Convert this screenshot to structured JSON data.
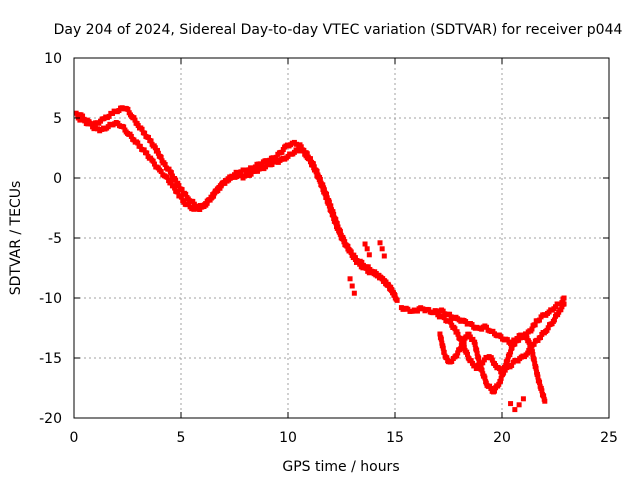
{
  "chart_data": {
    "type": "scatter",
    "title": "Day 204 of 2024, Sidereal Day-to-day VTEC variation (SDTVAR) for receiver p044",
    "xlabel": "GPS time / hours",
    "ylabel": "SDTVAR / TECUs",
    "xlim": [
      0,
      25
    ],
    "ylim": [
      -20,
      10
    ],
    "x_ticks": [
      0,
      5,
      10,
      15,
      20,
      25
    ],
    "y_ticks": [
      -20,
      -15,
      -10,
      -5,
      0,
      5,
      10
    ],
    "x_tick_labels": [
      "0",
      "5",
      "10",
      "15",
      "20",
      "25"
    ],
    "y_tick_labels": [
      "-20",
      "-15",
      "-10",
      "-5",
      "0",
      "5",
      "10"
    ],
    "grid": true,
    "color": "#ff0000",
    "series": [
      {
        "name": "trace-main",
        "x": [
          0.2,
          0.5,
          0.8,
          1.0,
          1.3,
          1.6,
          1.9,
          2.2,
          2.5,
          2.8,
          3.1,
          3.4,
          3.7,
          4.0,
          4.3,
          4.6,
          4.9,
          5.2,
          5.5,
          5.8,
          6.1,
          6.4,
          6.7,
          7.0,
          7.3,
          7.6,
          7.9,
          8.2,
          8.5,
          8.8,
          9.1,
          9.4,
          9.7,
          10.0,
          10.3,
          10.6,
          10.9,
          11.2,
          11.5,
          11.8,
          12.1,
          12.4,
          12.7,
          13.0,
          13.3,
          13.6,
          13.9,
          14.2,
          14.5,
          14.8,
          15.1
        ],
        "y": [
          5.0,
          4.7,
          4.4,
          4.1,
          4.0,
          4.3,
          4.6,
          4.4,
          3.8,
          3.2,
          2.6,
          2.0,
          1.3,
          0.6,
          0.1,
          -0.6,
          -1.4,
          -2.1,
          -2.5,
          -2.6,
          -2.3,
          -1.7,
          -1.0,
          -0.4,
          0.0,
          0.2,
          0.1,
          0.3,
          0.6,
          0.8,
          1.1,
          1.3,
          1.5,
          1.8,
          2.2,
          2.4,
          1.8,
          0.9,
          -0.3,
          -1.7,
          -3.2,
          -4.6,
          -5.6,
          -6.4,
          -6.9,
          -7.3,
          -7.7,
          -8.1,
          -8.6,
          -9.2,
          -10.2
        ]
      },
      {
        "name": "trace-upper",
        "x": [
          0.1,
          0.4,
          0.7,
          1.0,
          1.4,
          1.8,
          2.1,
          2.4,
          2.7,
          3.0,
          3.3,
          3.6,
          3.9,
          4.2,
          4.5,
          4.8,
          5.1,
          5.4,
          5.7,
          6.0,
          6.3,
          6.6,
          6.9,
          7.2,
          7.5,
          7.8,
          8.1,
          8.4,
          8.7,
          9.0,
          9.3,
          9.6,
          9.9,
          10.2,
          10.5,
          10.8,
          11.1,
          11.4,
          11.7,
          12.0,
          12.3,
          12.6,
          12.9,
          13.2,
          13.5,
          13.8,
          14.1,
          14.4,
          14.7,
          15.0
        ],
        "y": [
          5.4,
          5.1,
          4.6,
          4.5,
          4.9,
          5.4,
          5.7,
          5.9,
          5.2,
          4.4,
          3.7,
          3.0,
          2.2,
          1.2,
          0.5,
          -0.4,
          -1.2,
          -1.8,
          -2.3,
          -2.4,
          -1.9,
          -1.2,
          -0.6,
          -0.1,
          0.3,
          0.6,
          0.6,
          0.9,
          1.2,
          1.4,
          1.6,
          2.0,
          2.6,
          2.9,
          2.8,
          2.2,
          1.4,
          0.3,
          -1.0,
          -2.4,
          -3.9,
          -5.2,
          -6.1,
          -7.0,
          -7.4,
          -7.8,
          -8.0,
          -8.4,
          -9.0,
          -9.8
        ]
      },
      {
        "name": "trace-late",
        "x": [
          15.3,
          15.6,
          15.9,
          16.2,
          16.5,
          16.8,
          17.1,
          17.4,
          17.7,
          18.0,
          18.3,
          18.6,
          18.9,
          19.2,
          19.5,
          19.8,
          20.1,
          20.4,
          20.7,
          21.0,
          21.3,
          21.6,
          21.9,
          22.2,
          22.5,
          22.8,
          22.9
        ],
        "y": [
          -10.8,
          -11.0,
          -11.1,
          -10.9,
          -11.0,
          -11.2,
          -11.0,
          -11.3,
          -11.6,
          -11.8,
          -12.0,
          -12.3,
          -12.6,
          -12.4,
          -12.8,
          -13.1,
          -13.4,
          -13.7,
          -13.5,
          -13.3,
          -12.8,
          -12.0,
          -11.5,
          -11.2,
          -10.7,
          -10.3,
          -10.0
        ]
      },
      {
        "name": "trace-late-b",
        "x": [
          17.0,
          17.3,
          17.6,
          17.9,
          18.2,
          18.5,
          18.8,
          19.1,
          19.4,
          19.7,
          20.0,
          20.3,
          20.6,
          20.9,
          21.2,
          21.5,
          21.8,
          22.1,
          22.4,
          22.7,
          22.9
        ],
        "y": [
          -11.4,
          -11.7,
          -12.1,
          -12.9,
          -14.0,
          -15.2,
          -15.8,
          -15.3,
          -14.8,
          -15.6,
          -16.2,
          -15.8,
          -15.3,
          -15.0,
          -14.6,
          -13.8,
          -13.2,
          -12.6,
          -11.9,
          -11.0,
          -10.5
        ]
      },
      {
        "name": "trace-dip",
        "x": [
          17.1,
          17.3,
          17.5,
          17.8,
          18.1,
          18.4,
          18.7,
          19.0,
          19.3,
          19.6,
          19.9,
          20.2,
          20.5,
          20.8,
          21.1,
          21.4,
          21.7,
          22.0
        ],
        "y": [
          -13.0,
          -14.6,
          -15.4,
          -15.0,
          -14.0,
          -13.0,
          -13.6,
          -15.8,
          -17.2,
          -17.8,
          -17.0,
          -15.4,
          -14.0,
          -13.2,
          -13.0,
          -14.4,
          -16.8,
          -18.6
        ]
      },
      {
        "name": "trace-fragments",
        "x": [
          13.6,
          13.7,
          13.8,
          14.3,
          14.4,
          14.5,
          12.9,
          13.0,
          13.1,
          20.4,
          20.6,
          20.8,
          21.0
        ],
        "y": [
          -5.5,
          -5.9,
          -6.4,
          -5.4,
          -5.9,
          -6.5,
          -8.4,
          -9.0,
          -9.6,
          -18.8,
          -19.3,
          -18.9,
          -18.4
        ]
      }
    ]
  }
}
